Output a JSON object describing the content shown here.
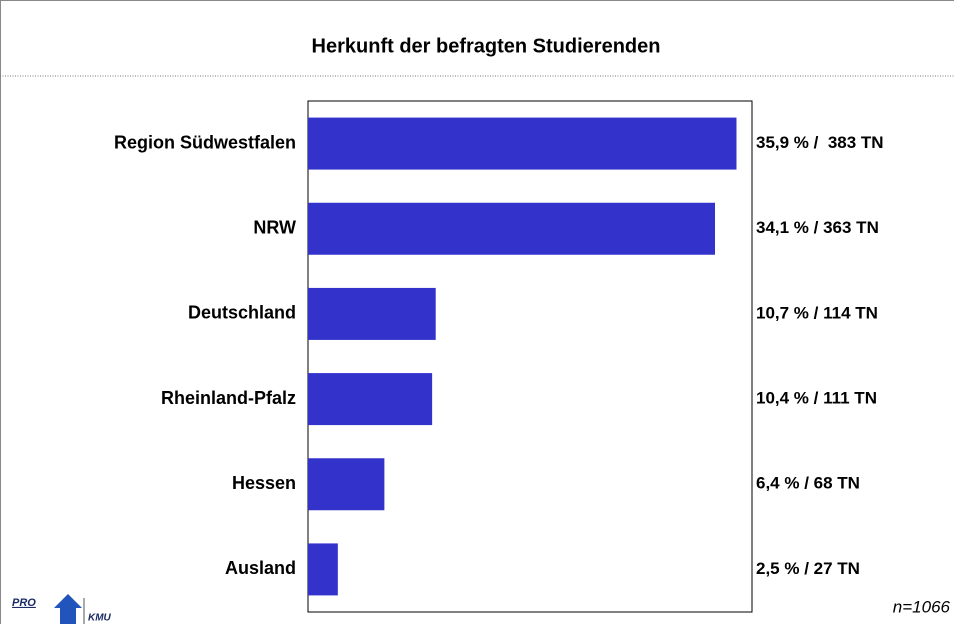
{
  "chart_data": {
    "type": "hbar",
    "title": "Herkunft der befragten Studierenden",
    "categories": [
      "Region Südwestfalen",
      "NRW",
      "Deutschland",
      "Rheinland-Pfalz",
      "Hessen",
      "Ausland"
    ],
    "values": [
      35.9,
      34.1,
      10.7,
      10.4,
      6.4,
      2.5
    ],
    "value_labels": [
      "35,9 % /  383 TN",
      "34,1 % / 363 TN",
      "10,7 % / 114 TN",
      "10,4 % / 111 TN",
      "6,4 % / 68 TN",
      "2,5 % / 27 TN"
    ],
    "color": "#3333cc",
    "xlim": [
      0,
      37.2
    ],
    "annotation": "n=1066"
  },
  "logo": {
    "top": "PRO",
    "bottom": "KMU"
  }
}
